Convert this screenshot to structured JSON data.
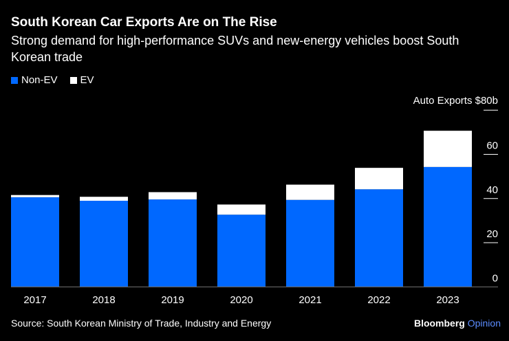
{
  "chart_data": {
    "type": "bar",
    "stacked": true,
    "title": "South Korean Car Exports Are on The Rise",
    "subtitle": "Strong demand for high-performance SUVs and new-energy vehicles boost South Korean trade",
    "ylabel": "Auto Exports $80b",
    "categories": [
      "2017",
      "2018",
      "2019",
      "2020",
      "2021",
      "2022",
      "2023"
    ],
    "series": [
      {
        "name": "Non-EV",
        "color": "#0068ff",
        "values": [
          40.6,
          39.0,
          39.6,
          32.7,
          39.4,
          44.2,
          54.3
        ]
      },
      {
        "name": "EV",
        "color": "#ffffff",
        "values": [
          1.0,
          1.8,
          3.3,
          4.6,
          6.9,
          9.7,
          16.4
        ]
      }
    ],
    "ylim": [
      0,
      80
    ],
    "yticks": [
      "0",
      "20",
      "40",
      "60"
    ],
    "legend": "top-left",
    "grid": false,
    "source": "Source: South Korean Ministry of Trade, Industry and Energy",
    "brand": "Bloomberg",
    "brand_suffix": "Opinion"
  }
}
